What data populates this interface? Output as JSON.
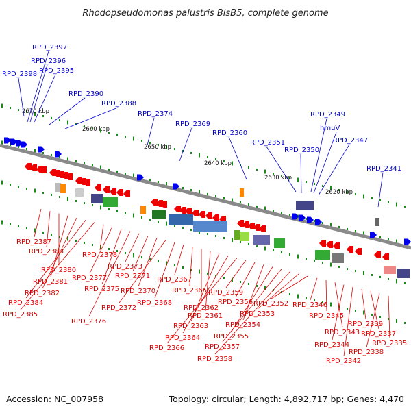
{
  "title": "Rhodopseudomonas palustris BisB5, complete genome",
  "footer": {
    "accession": "Accession: NC_007958",
    "summary": "Topology: circular; Length: 4,892,717 bp; Genes: 4,470"
  },
  "colors": {
    "forward_label": "#0000cc",
    "reverse_label": "#dd0000",
    "backbone": "#8a8a8a",
    "tick": "#1a8a1a",
    "forward_gene": "#0000ee",
    "reverse_gene": "#ee0000"
  },
  "scale": {
    "ticks": [
      {
        "label": "2670 kbp"
      },
      {
        "label": "2660 kbp"
      },
      {
        "label": "2650 kbp"
      },
      {
        "label": "2640 kbp"
      },
      {
        "label": "2630 kbp"
      },
      {
        "label": "2620 kbp"
      }
    ]
  },
  "forward_labels": [
    "RPD_2397",
    "RPD_2396",
    "RPD_2395",
    "RPD_2398",
    "RPD_2390",
    "RPD_2388",
    "RPD_2374",
    "RPD_2369",
    "RPD_2360",
    "RPD_2351",
    "RPD_2350",
    "RPD_2349",
    "hmuV",
    "RPD_2347",
    "RPD_2341"
  ],
  "reverse_labels": [
    "RPD_2387",
    "RPD_2383",
    "RPD_2380",
    "RPD_2381",
    "RPD_2382",
    "RPD_2384",
    "RPD_2385",
    "RPD_2378",
    "RPD_2377",
    "RPD_2375",
    "RPD_2376",
    "RPD_2373",
    "RPD_2371",
    "RPD_2370",
    "RPD_2372",
    "RPD_2368",
    "RPD_2367",
    "RPD_2365",
    "RPD_2362",
    "RPD_2361",
    "RPD_2363",
    "RPD_2364",
    "RPD_2366",
    "RPD_2359",
    "RPD_2356",
    "RPD_2354",
    "RPD_2355",
    "RPD_2357",
    "RPD_2358",
    "RPD_2353",
    "RPD_2352",
    "RPD_2346",
    "RPD_2345",
    "RPD_2343",
    "RPD_2344",
    "RPD_2342",
    "RPD_2339",
    "RPD_2337",
    "RPD_2338",
    "RPD_2335"
  ]
}
